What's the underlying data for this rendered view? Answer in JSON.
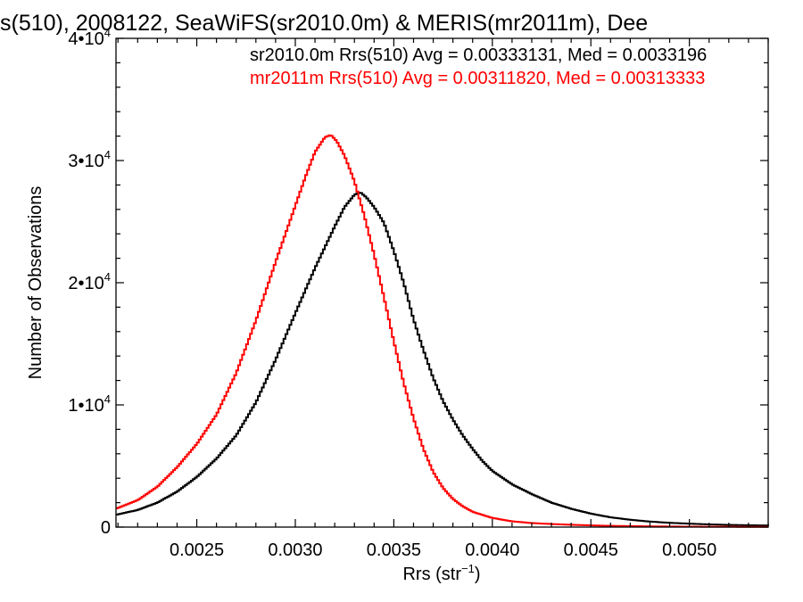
{
  "chart_data": {
    "type": "line",
    "title": "s(510), 2008122, SeaWiFS(sr2010.0m) & MERIS(mr2011m), Dee",
    "xlabel_main": "Rrs (str",
    "xlabel_sup": "−1",
    "xlabel_close": ")",
    "ylabel": "Number of Observations",
    "xlim": [
      0.00209,
      0.0054
    ],
    "ylim": [
      0,
      40000
    ],
    "x_ticks": [
      {
        "value": 0.0025,
        "label": "0.0025"
      },
      {
        "value": 0.003,
        "label": "0.0030"
      },
      {
        "value": 0.0035,
        "label": "0.0035"
      },
      {
        "value": 0.004,
        "label": "0.0040"
      },
      {
        "value": 0.0045,
        "label": "0.0045"
      },
      {
        "value": 0.005,
        "label": "0.0050"
      }
    ],
    "y_ticks": [
      {
        "value": 0,
        "base": "0",
        "exp": ""
      },
      {
        "value": 10000,
        "base": "1•10",
        "exp": "4"
      },
      {
        "value": 20000,
        "base": "2•10",
        "exp": "4"
      },
      {
        "value": 30000,
        "base": "3•10",
        "exp": "4"
      },
      {
        "value": 40000,
        "base": "4•10",
        "exp": "4"
      }
    ],
    "legend": [
      {
        "text": "sr2010.0m Rrs(510) Avg = 0.00333131, Med = 0.0033196",
        "color": "#000000"
      },
      {
        "text": "mr2011m Rrs(510) Avg = 0.00311820, Med = 0.00313333",
        "color": "#ff0000"
      }
    ],
    "series": [
      {
        "color": "#000000",
        "points": [
          [
            0.00209,
            1000
          ],
          [
            0.0022,
            1400
          ],
          [
            0.0023,
            2000
          ],
          [
            0.0024,
            2900
          ],
          [
            0.0025,
            4100
          ],
          [
            0.0026,
            5600
          ],
          [
            0.0027,
            7500
          ],
          [
            0.0028,
            10200
          ],
          [
            0.0029,
            13700
          ],
          [
            0.003,
            17500
          ],
          [
            0.0031,
            21200
          ],
          [
            0.0032,
            24600
          ],
          [
            0.00325,
            26200
          ],
          [
            0.0033,
            27200
          ],
          [
            0.00333,
            27400
          ],
          [
            0.00336,
            27000
          ],
          [
            0.0034,
            26200
          ],
          [
            0.00345,
            24900
          ],
          [
            0.0035,
            22600
          ],
          [
            0.00355,
            20000
          ],
          [
            0.0036,
            17000
          ],
          [
            0.00365,
            14500
          ],
          [
            0.0037,
            12200
          ],
          [
            0.00375,
            10300
          ],
          [
            0.0038,
            8800
          ],
          [
            0.00385,
            7500
          ],
          [
            0.0039,
            6400
          ],
          [
            0.00395,
            5400
          ],
          [
            0.004,
            4600
          ],
          [
            0.0041,
            3500
          ],
          [
            0.0042,
            2700
          ],
          [
            0.0043,
            2000
          ],
          [
            0.0044,
            1500
          ],
          [
            0.0045,
            1100
          ],
          [
            0.0046,
            800
          ],
          [
            0.0047,
            600
          ],
          [
            0.0048,
            450
          ],
          [
            0.0049,
            350
          ],
          [
            0.005,
            280
          ],
          [
            0.0051,
            220
          ],
          [
            0.0052,
            180
          ],
          [
            0.0053,
            150
          ],
          [
            0.0054,
            130
          ]
        ]
      },
      {
        "color": "#ff0000",
        "points": [
          [
            0.00209,
            1500
          ],
          [
            0.0022,
            2200
          ],
          [
            0.0023,
            3300
          ],
          [
            0.0024,
            4900
          ],
          [
            0.0025,
            6800
          ],
          [
            0.0026,
            9200
          ],
          [
            0.0027,
            12600
          ],
          [
            0.0028,
            16900
          ],
          [
            0.0029,
            21700
          ],
          [
            0.003,
            26300
          ],
          [
            0.00305,
            28600
          ],
          [
            0.0031,
            30700
          ],
          [
            0.00315,
            31900
          ],
          [
            0.00318,
            32100
          ],
          [
            0.00321,
            31600
          ],
          [
            0.00325,
            30400
          ],
          [
            0.0033,
            28300
          ],
          [
            0.00335,
            25500
          ],
          [
            0.0034,
            22300
          ],
          [
            0.00345,
            18800
          ],
          [
            0.0035,
            15200
          ],
          [
            0.00355,
            11800
          ],
          [
            0.0036,
            8900
          ],
          [
            0.00365,
            6400
          ],
          [
            0.0037,
            4500
          ],
          [
            0.00375,
            3200
          ],
          [
            0.0038,
            2300
          ],
          [
            0.00385,
            1700
          ],
          [
            0.0039,
            1250
          ],
          [
            0.004,
            750
          ],
          [
            0.0041,
            470
          ],
          [
            0.0042,
            330
          ],
          [
            0.0043,
            250
          ],
          [
            0.0044,
            190
          ],
          [
            0.0045,
            140
          ],
          [
            0.0046,
            100
          ],
          [
            0.0048,
            60
          ],
          [
            0.005,
            35
          ],
          [
            0.0054,
            15
          ]
        ]
      }
    ]
  }
}
